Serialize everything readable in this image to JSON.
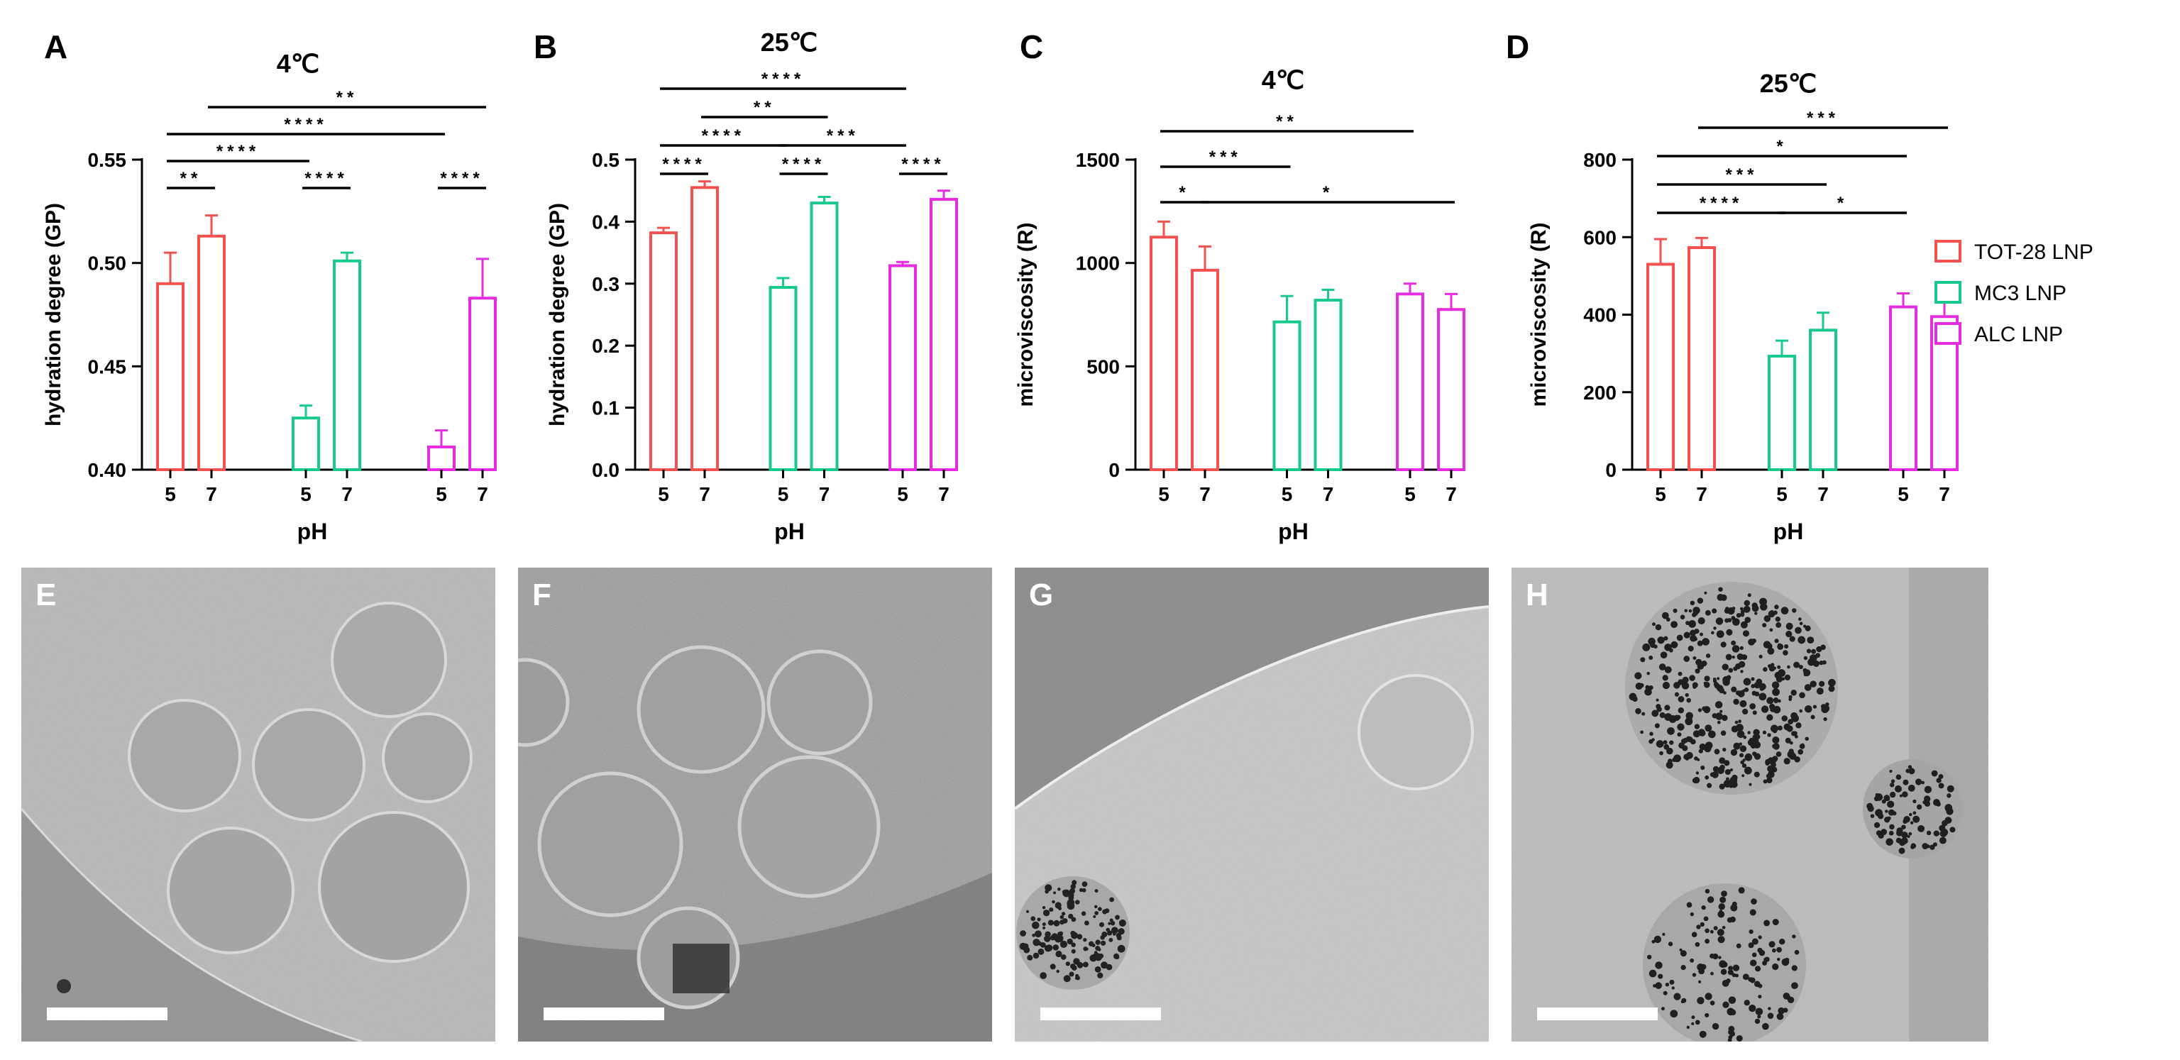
{
  "chart_data": [
    {
      "panel": "A",
      "type": "bar",
      "title": "4℃",
      "xlabel": "pH",
      "ylabel": "hydration degree (GP)",
      "ylim": [
        0.4,
        0.55
      ],
      "yticks": [
        0.4,
        0.45,
        0.5,
        0.55
      ],
      "yticklabels": [
        "0.40",
        "0.45",
        "0.50",
        "0.55"
      ],
      "categories": [
        "5",
        "7",
        "5",
        "7",
        "5",
        "7"
      ],
      "groups": [
        "TOT-28 LNP",
        "TOT-28 LNP",
        "MC3 LNP",
        "MC3 LNP",
        "ALC LNP",
        "ALC LNP"
      ],
      "values": [
        0.49,
        0.513,
        0.425,
        0.501,
        0.411,
        0.483
      ],
      "errors": [
        0.015,
        0.01,
        0.006,
        0.004,
        0.008,
        0.019
      ],
      "significance": [
        {
          "from": 0,
          "to": 1,
          "label": "**",
          "level": 0
        },
        {
          "from": 2,
          "to": 3,
          "label": "****",
          "level": 0
        },
        {
          "from": 4,
          "to": 5,
          "label": "****",
          "level": 0
        },
        {
          "from": 0,
          "to": 2,
          "label": "****",
          "level": 1
        },
        {
          "from": 0,
          "to": 4,
          "label": "****",
          "level": 2
        },
        {
          "from": 1,
          "to": 5,
          "label": "**",
          "level": 3
        }
      ]
    },
    {
      "panel": "B",
      "type": "bar",
      "title": "25℃",
      "xlabel": "pH",
      "ylabel": "hydration degree (GP)",
      "ylim": [
        0.0,
        0.5
      ],
      "yticks": [
        0.0,
        0.1,
        0.2,
        0.3,
        0.4,
        0.5
      ],
      "yticklabels": [
        "0.0",
        "0.1",
        "0.2",
        "0.3",
        "0.4",
        "0.5"
      ],
      "categories": [
        "5",
        "7",
        "5",
        "7",
        "5",
        "7"
      ],
      "groups": [
        "TOT-28 LNP",
        "TOT-28 LNP",
        "MC3 LNP",
        "MC3 LNP",
        "ALC LNP",
        "ALC LNP"
      ],
      "values": [
        0.382,
        0.455,
        0.294,
        0.43,
        0.329,
        0.436
      ],
      "errors": [
        0.008,
        0.01,
        0.015,
        0.01,
        0.006,
        0.014
      ],
      "significance": [
        {
          "from": 0,
          "to": 1,
          "label": "****",
          "level": 0
        },
        {
          "from": 2,
          "to": 3,
          "label": "****",
          "level": 0
        },
        {
          "from": 4,
          "to": 5,
          "label": "****",
          "level": 0
        },
        {
          "from": 0,
          "to": 2,
          "label": "****",
          "level": 1
        },
        {
          "from": 2,
          "to": 4,
          "label": "***",
          "level": 1
        },
        {
          "from": 1,
          "to": 3,
          "label": "**",
          "level": 2
        },
        {
          "from": 0,
          "to": 4,
          "label": "****",
          "level": 3
        }
      ]
    },
    {
      "panel": "C",
      "type": "bar",
      "title": "4℃",
      "xlabel": "pH",
      "ylabel": "microviscosity (R)",
      "ylim": [
        0,
        1500
      ],
      "yticks": [
        0,
        500,
        1000,
        1500
      ],
      "yticklabels": [
        "0",
        "500",
        "1000",
        "1500"
      ],
      "categories": [
        "5",
        "7",
        "5",
        "7",
        "5",
        "7"
      ],
      "groups": [
        "TOT-28 LNP",
        "TOT-28 LNP",
        "MC3 LNP",
        "MC3 LNP",
        "ALC LNP",
        "ALC LNP"
      ],
      "values": [
        1125,
        965,
        715,
        820,
        850,
        775
      ],
      "errors": [
        75,
        115,
        125,
        50,
        50,
        75
      ],
      "significance": [
        {
          "from": 0,
          "to": 1,
          "label": "*",
          "level": 0
        },
        {
          "from": 1,
          "to": 5,
          "label": "*",
          "level": 0
        },
        {
          "from": 0,
          "to": 2,
          "label": "***",
          "level": 1
        },
        {
          "from": 0,
          "to": 4,
          "label": "**",
          "level": 2
        }
      ]
    },
    {
      "panel": "D",
      "type": "bar",
      "title": "25℃",
      "xlabel": "pH",
      "ylabel": "microviscosity (R)",
      "ylim": [
        0,
        800
      ],
      "yticks": [
        0,
        200,
        400,
        600,
        800
      ],
      "yticklabels": [
        "0",
        "200",
        "400",
        "600",
        "800"
      ],
      "categories": [
        "5",
        "7",
        "5",
        "7",
        "5",
        "7"
      ],
      "groups": [
        "TOT-28 LNP",
        "TOT-28 LNP",
        "MC3 LNP",
        "MC3 LNP",
        "ALC LNP",
        "ALC LNP"
      ],
      "values": [
        530,
        573,
        293,
        360,
        420,
        395
      ],
      "errors": [
        65,
        25,
        40,
        45,
        35,
        45
      ],
      "significance": [
        {
          "from": 2,
          "to": 4,
          "label": "*",
          "level": 0
        },
        {
          "from": 0,
          "to": 2,
          "label": "****",
          "level": 0
        },
        {
          "from": 0,
          "to": 3,
          "label": "***",
          "level": 1
        },
        {
          "from": 0,
          "to": 4,
          "label": "*",
          "level": 2
        },
        {
          "from": 1,
          "to": 5,
          "label": "***",
          "level": 3
        }
      ]
    }
  ],
  "legend": {
    "entries": [
      {
        "label": "TOT-28 LNP",
        "color": "#F4524F"
      },
      {
        "label": "MC3 LNP",
        "color": "#17C98C"
      },
      {
        "label": "ALC LNP",
        "color": "#E52CE0"
      }
    ],
    "placement": "right"
  },
  "colors": {
    "TOT-28 LNP": "#F4524F",
    "MC3 LNP": "#17C98C",
    "ALC LNP": "#E52CE0"
  },
  "micrographs": [
    {
      "label": "E",
      "style": "vesicles"
    },
    {
      "label": "F",
      "style": "vesicles-dense"
    },
    {
      "label": "G",
      "style": "single-vesicle"
    },
    {
      "label": "H",
      "style": "particles"
    }
  ]
}
